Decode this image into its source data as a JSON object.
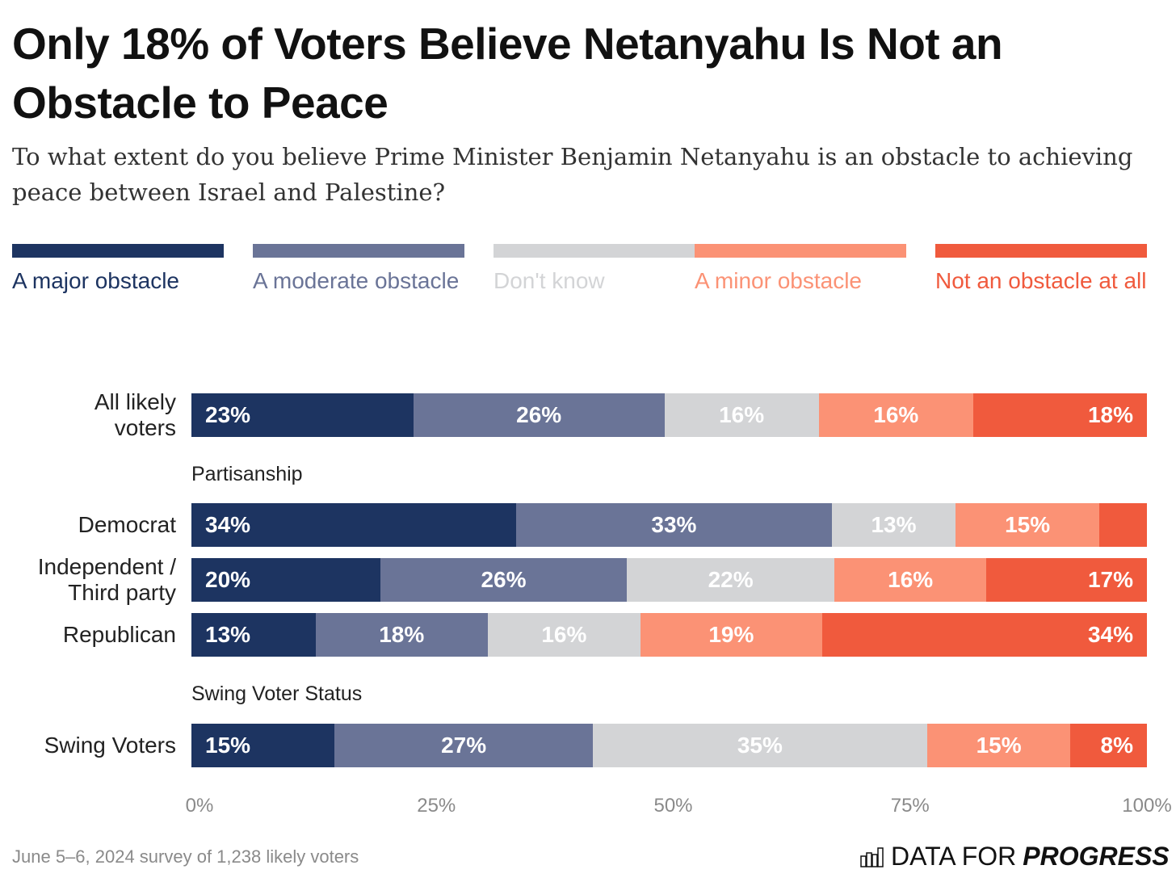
{
  "chart_data": {
    "type": "bar",
    "orientation": "horizontal-stacked-100",
    "title": "Only 18% of Voters Believe Netanyahu Is Not an Obstacle to Peace",
    "subtitle": "To what extent do you believe Prime Minister Benjamin Netanyahu is an obstacle to achieving peace between Israel and Palestine?",
    "legend_placement": "top",
    "series": [
      {
        "name": "A major obstacle",
        "color": "#1d3461"
      },
      {
        "name": "A moderate obstacle",
        "color": "#6a7497"
      },
      {
        "name": "Don't know",
        "color": "#d3d4d6"
      },
      {
        "name": "A minor obstacle",
        "color": "#fb9275"
      },
      {
        "name": "Not an obstacle at all",
        "color": "#f05a3d"
      }
    ],
    "rows": [
      {
        "label": "All likely voters",
        "section": "",
        "values": [
          23,
          26,
          16,
          16,
          18
        ],
        "show_labels": [
          true,
          true,
          true,
          true,
          true
        ]
      },
      {
        "label": "Democrat",
        "section": "Partisanship",
        "values": [
          34,
          33,
          13,
          15,
          5
        ],
        "show_labels": [
          true,
          true,
          true,
          true,
          false
        ]
      },
      {
        "label": "Independent / Third party",
        "section": "Partisanship",
        "values": [
          20,
          26,
          22,
          16,
          17
        ],
        "show_labels": [
          true,
          true,
          true,
          true,
          true
        ]
      },
      {
        "label": "Republican",
        "section": "Partisanship",
        "values": [
          13,
          18,
          16,
          19,
          34
        ],
        "show_labels": [
          true,
          true,
          true,
          true,
          true
        ]
      },
      {
        "label": "Swing Voters",
        "section": "Swing Voter Status",
        "values": [
          15,
          27,
          35,
          15,
          8
        ],
        "show_labels": [
          true,
          true,
          true,
          true,
          true
        ]
      }
    ],
    "sections": [
      "Partisanship",
      "Swing Voter Status"
    ],
    "x_ticks": [
      "0%",
      "25%",
      "50%",
      "75%",
      "100%"
    ],
    "xlim": [
      0,
      100
    ],
    "grid": false
  },
  "footer": "June 5–6, 2024 survey of 1,238 likely voters",
  "logo": {
    "text_light": "DATA FOR",
    "text_bold": "PROGRESS"
  }
}
